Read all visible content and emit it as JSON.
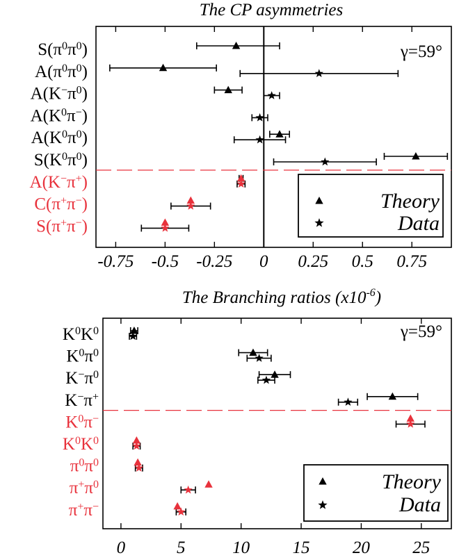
{
  "colors": {
    "black": "#000000",
    "red": "#e8323c",
    "dashed": "#e8323c"
  },
  "chart_data": [
    {
      "type": "scatter",
      "title": "The CP asymmetries",
      "annotation": "γ=59°",
      "xlim": [
        -0.85,
        0.95
      ],
      "xticks": [
        -0.75,
        -0.5,
        -0.25,
        0,
        0.25,
        0.5,
        0.75
      ],
      "xtick_labels": [
        "-0.75",
        "-0.5",
        "-0.25",
        "0",
        "0.25",
        "0.5",
        "0.75"
      ],
      "grid": false,
      "legend_position": "bottom-right",
      "legend": [
        {
          "marker": "triangle",
          "label": "Theory"
        },
        {
          "marker": "star",
          "label": "Data"
        }
      ],
      "separator_after_row": 6,
      "rows": [
        {
          "label": "S(π⁰π⁰)",
          "color": "black",
          "theory": {
            "value": -0.14,
            "low": -0.34,
            "high": 0.08
          },
          "data": null
        },
        {
          "label": "A(π⁰π⁰)",
          "color": "black",
          "theory": {
            "value": -0.51,
            "low": -0.78,
            "high": -0.24
          },
          "data": {
            "value": 0.28,
            "low": -0.12,
            "high": 0.68
          }
        },
        {
          "label": "A(K⁻π⁰)",
          "color": "black",
          "theory": {
            "value": -0.18,
            "low": -0.25,
            "high": -0.11
          },
          "data": {
            "value": 0.04,
            "low": 0.0,
            "high": 0.08
          }
        },
        {
          "label": "A(K⁰π⁻)",
          "color": "black",
          "theory": null,
          "data": {
            "value": -0.02,
            "low": -0.06,
            "high": 0.02
          }
        },
        {
          "label": "A(K⁰π⁰)",
          "color": "black",
          "theory": {
            "value": 0.08,
            "low": 0.03,
            "high": 0.13
          },
          "data": {
            "value": -0.02,
            "low": -0.15,
            "high": 0.11
          }
        },
        {
          "label": "S(K⁰π⁰)",
          "color": "black",
          "theory": {
            "value": 0.77,
            "low": 0.61,
            "high": 0.93
          },
          "data": {
            "value": 0.31,
            "low": 0.05,
            "high": 0.57
          }
        },
        {
          "label": "A(K⁻π⁺)",
          "color": "red",
          "theory": {
            "value": -0.115,
            "low": -0.125,
            "high": -0.105
          },
          "data": {
            "value": -0.115,
            "low": -0.135,
            "high": -0.095
          }
        },
        {
          "label": "C(π⁺π⁻)",
          "color": "red",
          "theory": {
            "value": -0.37,
            "low": -0.37,
            "high": -0.37
          },
          "data": {
            "value": -0.37,
            "low": -0.47,
            "high": -0.27
          }
        },
        {
          "label": "S(π⁺π⁻)",
          "color": "red",
          "theory": {
            "value": -0.5,
            "low": -0.5,
            "high": -0.5
          },
          "data": {
            "value": -0.5,
            "low": -0.62,
            "high": -0.38
          }
        }
      ]
    },
    {
      "type": "scatter",
      "title": "The Branching ratios (x10⁻⁶)",
      "annotation": "γ=59°",
      "xlim": [
        -1.5,
        27.5
      ],
      "xticks": [
        0,
        5,
        10,
        15,
        20,
        25
      ],
      "xtick_labels": [
        "0",
        "5",
        "10",
        "15",
        "20",
        "25"
      ],
      "grid": false,
      "legend_position": "bottom-right",
      "legend": [
        {
          "marker": "triangle",
          "label": "Theory"
        },
        {
          "marker": "star",
          "label": "Data"
        }
      ],
      "separator_after_row": 4,
      "rows": [
        {
          "label": "K⁰K⁰",
          "color": "black",
          "theory": {
            "value": 1.1,
            "low": 0.8,
            "high": 1.4
          },
          "data": {
            "value": 1.0,
            "low": 0.7,
            "high": 1.3
          }
        },
        {
          "label": "K⁰π⁰",
          "color": "black",
          "theory": {
            "value": 11.0,
            "low": 9.8,
            "high": 12.2
          },
          "data": {
            "value": 11.5,
            "low": 10.5,
            "high": 12.5
          }
        },
        {
          "label": "K⁻π⁰",
          "color": "black",
          "theory": {
            "value": 12.8,
            "low": 11.5,
            "high": 14.1
          },
          "data": {
            "value": 12.1,
            "low": 11.4,
            "high": 12.8
          }
        },
        {
          "label": "K⁻π⁺",
          "color": "black",
          "theory": {
            "value": 22.6,
            "low": 20.5,
            "high": 24.7
          },
          "data": {
            "value": 18.9,
            "low": 18.1,
            "high": 19.7
          }
        },
        {
          "label": "K⁰π⁻",
          "color": "red",
          "theory": {
            "value": 24.1,
            "low": 24.1,
            "high": 24.1
          },
          "data": {
            "value": 24.1,
            "low": 22.9,
            "high": 25.3
          }
        },
        {
          "label": "K⁰K⁰",
          "color": "red",
          "theory": {
            "value": 1.3,
            "low": 1.3,
            "high": 1.3
          },
          "data": {
            "value": 1.3,
            "low": 1.0,
            "high": 1.6
          }
        },
        {
          "label": "π⁰π⁰",
          "color": "red",
          "theory": {
            "value": 1.4,
            "low": 1.4,
            "high": 1.4
          },
          "data": {
            "value": 1.5,
            "low": 1.2,
            "high": 1.8
          }
        },
        {
          "label": "π⁺π⁰",
          "color": "red",
          "theory": {
            "value": 7.3,
            "low": 7.3,
            "high": 7.3
          },
          "data": {
            "value": 5.6,
            "low": 5.0,
            "high": 6.2
          }
        },
        {
          "label": "π⁺π⁻",
          "color": "red",
          "theory": {
            "value": 4.7,
            "low": 4.7,
            "high": 4.7
          },
          "data": {
            "value": 5.0,
            "low": 4.6,
            "high": 5.4
          }
        }
      ]
    }
  ]
}
